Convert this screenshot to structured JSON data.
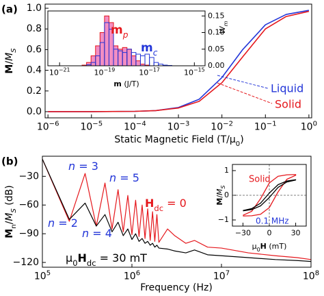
{
  "chart_data": [
    {
      "type": "line",
      "panel_label": "(a)",
      "xscale": "log",
      "xlabel": [
        {
          "text": "Static Magnetic Field (T/μ"
        },
        {
          "text": "0",
          "sub": true
        },
        {
          "text": ")"
        }
      ],
      "ylabel": [
        {
          "text": "M",
          "bold": true
        },
        {
          "text": "/"
        },
        {
          "text": "M",
          "italic": true
        },
        {
          "text": "S",
          "sub": true,
          "italic": true
        }
      ],
      "xlim": [
        8.6e-07,
        1.16
      ],
      "ylim": [
        -0.06,
        1.04
      ],
      "xticks": [
        {
          "value": 1e-06,
          "label": "10",
          "sup": "−6"
        },
        {
          "value": 1e-05,
          "label": "10",
          "sup": "−5"
        },
        {
          "value": 0.0001,
          "label": "10",
          "sup": "−4"
        },
        {
          "value": 0.001,
          "label": "10",
          "sup": "−3"
        },
        {
          "value": 0.01,
          "label": "10",
          "sup": "−2"
        },
        {
          "value": 0.1,
          "label": "10",
          "sup": "−1"
        },
        {
          "value": 1,
          "label": "10",
          "sup": "0"
        }
      ],
      "yticks": [
        {
          "value": 0,
          "label": "0.0"
        },
        0.2,
        0.4,
        0.6,
        0.8,
        {
          "value": 1,
          "label": "1.0"
        }
      ],
      "x": [
        1e-06,
        1e-05,
        0.0001,
        0.0003,
        0.001,
        0.003,
        0.01,
        0.03,
        0.1,
        0.3,
        1
      ],
      "series": [
        {
          "name": "Liquid",
          "color": "#2336d8",
          "values": [
            0,
            0,
            0.003,
            0.01,
            0.04,
            0.12,
            0.33,
            0.6,
            0.84,
            0.94,
            0.98
          ]
        },
        {
          "name": "Solid",
          "color": "#e5171c",
          "values": [
            0,
            0,
            0.003,
            0.01,
            0.035,
            0.1,
            0.28,
            0.53,
            0.8,
            0.92,
            0.97
          ]
        }
      ]
    },
    {
      "type": "histogram",
      "xscale": "log",
      "yaxis_side": "right",
      "xlabel": [
        {
          "text": "m",
          "bold": true
        },
        {
          "text": " (J/T)"
        }
      ],
      "ylabel": [
        {
          "text": "W",
          "italic": true
        },
        {
          "text": "m",
          "sub": true,
          "italic": true
        }
      ],
      "xlim": [
        3e-22,
        3e-15
      ],
      "ylim": [
        0,
        0.165
      ],
      "xticks": [
        {
          "value": 1e-21,
          "label": "10",
          "sup": "−21"
        },
        {
          "value": 1e-19,
          "label": "10",
          "sup": "−19"
        },
        {
          "value": 1e-17,
          "label": "10",
          "sup": "−17"
        },
        {
          "value": 1e-15,
          "label": "10",
          "sup": "−15"
        }
      ],
      "yticks": [
        {
          "value": 0,
          "label": "0.00"
        },
        0.05,
        {
          "value": 0.1,
          "label": "0.10"
        },
        0.15
      ],
      "bins": [
        1e-20,
        1.585e-20,
        2.512e-20,
        3.981e-20,
        6.31e-20,
        1e-19,
        1.585e-19,
        2.512e-19,
        3.981e-19,
        6.31e-19,
        1e-18,
        1.585e-18,
        2.512e-18,
        3.981e-18,
        6.31e-18,
        1e-17,
        1.585e-17,
        2.512e-17,
        3.981e-17,
        6.31e-17,
        1e-16,
        1.585e-16,
        2.512e-16,
        3.981e-16,
        6.31e-16,
        1e-15
      ],
      "series": [
        {
          "name": [
            {
              "text": "m",
              "bold": true
            },
            {
              "text": "p",
              "sub": true,
              "italic": true
            }
          ],
          "color": "#e5171c",
          "fill": "#f07ab8",
          "values": [
            0.002,
            0.01,
            0.03,
            0.06,
            0.1,
            0.15,
            0.13,
            0.06,
            0.05,
            0.055,
            0.05,
            0.03,
            0.015,
            0.005,
            0.002,
            0,
            0,
            0,
            0,
            0,
            0,
            0,
            0,
            0,
            0
          ]
        },
        {
          "name": [
            {
              "text": "m",
              "bold": true
            },
            {
              "text": "c",
              "sub": true,
              "italic": true
            }
          ],
          "color": "#2336d8",
          "values": [
            0,
            0.003,
            0.01,
            0.03,
            0.07,
            0.13,
            0.11,
            0.05,
            0.045,
            0.04,
            0.05,
            0.04,
            0.035,
            0.03,
            0.035,
            0.025,
            0.01,
            0.005,
            0.002,
            0.001,
            0,
            0,
            0,
            0,
            0
          ]
        }
      ]
    },
    {
      "type": "line",
      "panel_label": "(b)",
      "xscale": "log",
      "xlabel": "Frequency (Hz)",
      "ylabel": [
        {
          "text": "M",
          "bold": true
        },
        {
          "text": "n",
          "sub": true
        },
        {
          "text": "/"
        },
        {
          "text": "M",
          "italic": true
        },
        {
          "text": "S",
          "sub": true,
          "italic": true
        },
        {
          "text": " (dB)"
        }
      ],
      "xlim": [
        100000,
        100000000
      ],
      "ylim": [
        -125,
        -9
      ],
      "xticks": [
        {
          "value": 100000,
          "label": "10",
          "sup": "5"
        },
        {
          "value": 1000000,
          "label": "10",
          "sup": "6"
        },
        {
          "value": 10000000,
          "label": "10",
          "sup": "7"
        },
        {
          "value": 100000000,
          "label": "10",
          "sup": "8"
        }
      ],
      "yticks": [
        {
          "value": -120,
          "label": "−120"
        },
        {
          "value": -90,
          "label": "−90"
        },
        {
          "value": -60,
          "label": "−60"
        },
        {
          "value": -30,
          "label": "−30"
        }
      ],
      "x": [
        100000,
        200000,
        300000,
        400000,
        500000,
        600000,
        700000,
        800000,
        900000,
        1000000,
        1100000,
        1200000,
        1300000,
        1400000,
        1500000,
        1600000,
        1700000,
        1800000,
        1900000,
        2000000,
        2500000,
        3000000,
        4000000,
        5000000,
        7000000,
        10000000,
        20000000,
        40000000,
        70000000,
        100000000
      ],
      "series": [
        {
          "name": [
            {
              "text": "H",
              "bold": true
            },
            {
              "text": "dc",
              "sub": true
            },
            {
              "text": " = 0"
            }
          ],
          "color": "#e5171c",
          "values": [
            -12,
            -77,
            -27,
            -82,
            -37,
            -85,
            -44,
            -88,
            -50,
            -91,
            -55,
            -93,
            -60,
            -95,
            -64,
            -97,
            -67,
            -98,
            -70,
            -99,
            -85,
            -92,
            -100,
            -97,
            -104,
            -105,
            -110,
            -113,
            -115,
            -117
          ]
        },
        {
          "name": [
            {
              "text": "μ"
            },
            {
              "text": "0",
              "sub": true
            },
            {
              "text": "H",
              "bold": true
            },
            {
              "text": "dc",
              "sub": true
            },
            {
              "text": " = 30 mT"
            }
          ],
          "color": "#000000",
          "values": [
            -12,
            -75,
            -58,
            -82,
            -70,
            -88,
            -78,
            -92,
            -85,
            -96,
            -90,
            -98,
            -95,
            -100,
            -98,
            -102,
            -100,
            -104,
            -102,
            -105,
            -106,
            -108,
            -110,
            -107,
            -112,
            -113,
            -115,
            -117,
            -118,
            -119
          ]
        }
      ],
      "annotations": [
        {
          "text": [
            {
              "text": "n",
              "italic": true
            },
            {
              "text": " = 3"
            }
          ],
          "color": "#2336d8"
        },
        {
          "text": [
            {
              "text": "n",
              "italic": true
            },
            {
              "text": " = 5"
            }
          ],
          "color": "#2336d8"
        },
        {
          "text": [
            {
              "text": "n",
              "italic": true
            },
            {
              "text": " = 2"
            }
          ],
          "color": "#2336d8"
        },
        {
          "text": [
            {
              "text": "n",
              "italic": true
            },
            {
              "text": " = 4"
            }
          ],
          "color": "#2336d8"
        }
      ]
    },
    {
      "type": "line",
      "zero_lines": true,
      "xlabel": [
        {
          "text": "μ"
        },
        {
          "text": "0",
          "sub": true
        },
        {
          "text": "H",
          "bold": true
        },
        {
          "text": " (mT)"
        }
      ],
      "ylabel": [
        {
          "text": "M",
          "bold": true
        },
        {
          "text": "/"
        },
        {
          "text": "M",
          "italic": true
        },
        {
          "text": "S",
          "sub": true,
          "italic": true
        }
      ],
      "xlim": [
        -42,
        42
      ],
      "ylim": [
        -1.25,
        1.25
      ],
      "xticks": [
        {
          "value": -30,
          "label": "−30"
        },
        0,
        30
      ],
      "yticks": [
        {
          "value": -1,
          "label": "−1"
        },
        0,
        1
      ],
      "x": [
        -30,
        -20,
        -10,
        0,
        10,
        20,
        30,
        30,
        20,
        10,
        0,
        -10,
        -20,
        -30
      ],
      "series": [
        {
          "name": "Solid",
          "color": "#e5171c",
          "values": [
            -0.84,
            -0.83,
            -0.77,
            -0.5,
            0.14,
            0.65,
            0.81,
            0.84,
            0.83,
            0.77,
            0.5,
            -0.14,
            -0.65,
            -0.81
          ]
        },
        {
          "name": null,
          "color": "#000000",
          "values": [
            -0.63,
            -0.58,
            -0.43,
            -0.09,
            0.32,
            0.54,
            0.62,
            0.63,
            0.58,
            0.43,
            0.09,
            -0.32,
            -0.54,
            -0.62
          ]
        }
      ],
      "annotations": [
        {
          "text": "0.1 MHz",
          "color": "#2336d8"
        }
      ]
    }
  ]
}
